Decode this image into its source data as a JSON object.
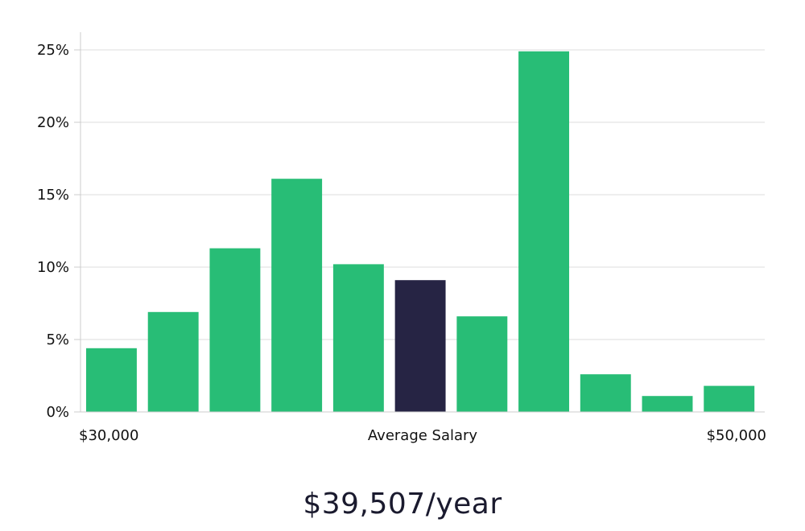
{
  "chart_data": {
    "type": "bar",
    "title": "",
    "xlabel": "Average Salary",
    "ylabel": "",
    "ylim": [
      0,
      25
    ],
    "y_ticks": [
      0,
      5,
      10,
      15,
      20,
      25
    ],
    "y_tick_format": "{v}%",
    "x_range_labels": {
      "min": "$30,000",
      "center": "Average Salary",
      "max": "$50,000"
    },
    "grid": true,
    "values": [
      4.4,
      6.9,
      11.3,
      16.1,
      10.2,
      9.1,
      6.6,
      24.9,
      2.6,
      1.1,
      1.8
    ],
    "highlight_index": 5,
    "colors": {
      "bar": "#28bd76",
      "highlight": "#262444",
      "grid": "#dddddd",
      "axis": "#cccccc"
    }
  },
  "salary": {
    "headline": "$39,507/year"
  }
}
